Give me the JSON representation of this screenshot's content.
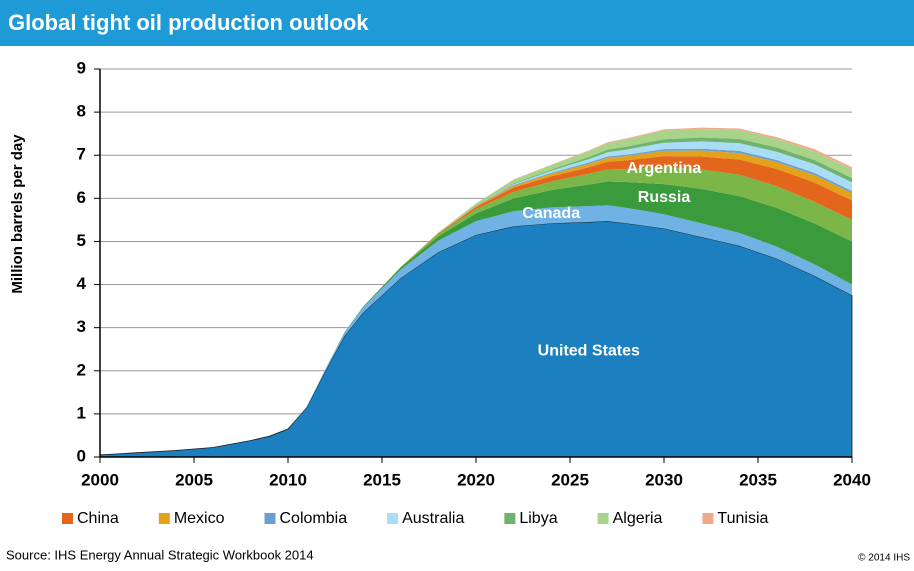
{
  "chart_data": {
    "type": "stacked_area",
    "title": "Global tight oil production outlook",
    "y_label": "Million barrels per day",
    "source": "Source: IHS Energy Annual Strategic Workbook 2014",
    "copyright": "© 2014 IHS",
    "x": [
      2000,
      2002,
      2004,
      2006,
      2008,
      2009,
      2010,
      2011,
      2012,
      2013,
      2014,
      2016,
      2018,
      2020,
      2022,
      2024,
      2026,
      2027,
      2028,
      2030,
      2032,
      2034,
      2036,
      2038,
      2040
    ],
    "xlim": [
      2000,
      2040
    ],
    "xticks": [
      2000,
      2005,
      2010,
      2015,
      2020,
      2025,
      2030,
      2035,
      2040
    ],
    "ylim": [
      0,
      9
    ],
    "yticks": [
      0,
      1,
      2,
      3,
      4,
      5,
      6,
      7,
      8,
      9
    ],
    "grid": true,
    "series": [
      {
        "name": "United States",
        "color": "#1b7fc0",
        "values": [
          0.05,
          0.1,
          0.15,
          0.22,
          0.38,
          0.48,
          0.65,
          1.15,
          2.0,
          2.8,
          3.35,
          4.15,
          4.75,
          5.15,
          5.35,
          5.42,
          5.45,
          5.47,
          5.42,
          5.3,
          5.1,
          4.9,
          4.6,
          4.2,
          3.75
        ]
      },
      {
        "name": "Canada",
        "color": "#6fb2e3",
        "values": [
          0,
          0,
          0,
          0,
          0,
          0,
          0,
          0.02,
          0.05,
          0.08,
          0.12,
          0.2,
          0.27,
          0.32,
          0.35,
          0.37,
          0.37,
          0.37,
          0.36,
          0.33,
          0.32,
          0.3,
          0.28,
          0.27,
          0.25
        ]
      },
      {
        "name": "Russia",
        "color": "#3a9a3c",
        "values": [
          0,
          0,
          0,
          0,
          0,
          0,
          0,
          0,
          0,
          0.01,
          0.02,
          0.05,
          0.1,
          0.18,
          0.3,
          0.4,
          0.5,
          0.55,
          0.6,
          0.7,
          0.8,
          0.85,
          0.9,
          0.95,
          1.0
        ]
      },
      {
        "name": "Argentina",
        "color": "#7ab648",
        "values": [
          0,
          0,
          0,
          0,
          0,
          0,
          0,
          0,
          0,
          0,
          0,
          0.01,
          0.05,
          0.1,
          0.15,
          0.2,
          0.25,
          0.28,
          0.3,
          0.4,
          0.45,
          0.5,
          0.5,
          0.5,
          0.5
        ]
      },
      {
        "name": "China",
        "color": "#e3661c",
        "values": [
          0,
          0,
          0,
          0,
          0,
          0,
          0,
          0,
          0,
          0,
          0,
          0,
          0.02,
          0.05,
          0.1,
          0.12,
          0.15,
          0.18,
          0.2,
          0.25,
          0.3,
          0.35,
          0.4,
          0.45,
          0.45
        ]
      },
      {
        "name": "Mexico",
        "color": "#e3a21a",
        "values": [
          0,
          0,
          0,
          0,
          0,
          0,
          0,
          0,
          0,
          0,
          0,
          0,
          0,
          0.02,
          0.04,
          0.06,
          0.08,
          0.09,
          0.1,
          0.12,
          0.14,
          0.15,
          0.16,
          0.17,
          0.17
        ]
      },
      {
        "name": "Colombia",
        "color": "#6a9fd0",
        "values": [
          0,
          0,
          0,
          0,
          0,
          0,
          0,
          0,
          0,
          0,
          0,
          0,
          0,
          0.01,
          0.02,
          0.02,
          0.03,
          0.03,
          0.03,
          0.04,
          0.04,
          0.05,
          0.05,
          0.05,
          0.05
        ]
      },
      {
        "name": "Australia",
        "color": "#a9dcf5",
        "values": [
          0,
          0,
          0,
          0,
          0,
          0,
          0,
          0,
          0,
          0,
          0,
          0,
          0,
          0,
          0.02,
          0.05,
          0.08,
          0.1,
          0.12,
          0.15,
          0.17,
          0.18,
          0.19,
          0.2,
          0.2
        ]
      },
      {
        "name": "Libya",
        "color": "#6fb36f",
        "values": [
          0,
          0,
          0,
          0,
          0,
          0,
          0,
          0,
          0,
          0,
          0,
          0,
          0,
          0,
          0.02,
          0.03,
          0.05,
          0.06,
          0.07,
          0.08,
          0.09,
          0.1,
          0.1,
          0.1,
          0.1
        ]
      },
      {
        "name": "Algeria",
        "color": "#a8d48a",
        "values": [
          0,
          0,
          0,
          0,
          0,
          0,
          0,
          0,
          0,
          0,
          0,
          0,
          0.02,
          0.05,
          0.08,
          0.1,
          0.13,
          0.15,
          0.17,
          0.2,
          0.2,
          0.2,
          0.2,
          0.2,
          0.2
        ]
      },
      {
        "name": "Tunisia",
        "color": "#f2a98a",
        "values": [
          0,
          0,
          0,
          0,
          0,
          0,
          0,
          0,
          0,
          0,
          0,
          0,
          0,
          0,
          0.01,
          0.01,
          0.02,
          0.02,
          0.02,
          0.03,
          0.03,
          0.04,
          0.04,
          0.05,
          0.05
        ]
      }
    ]
  }
}
